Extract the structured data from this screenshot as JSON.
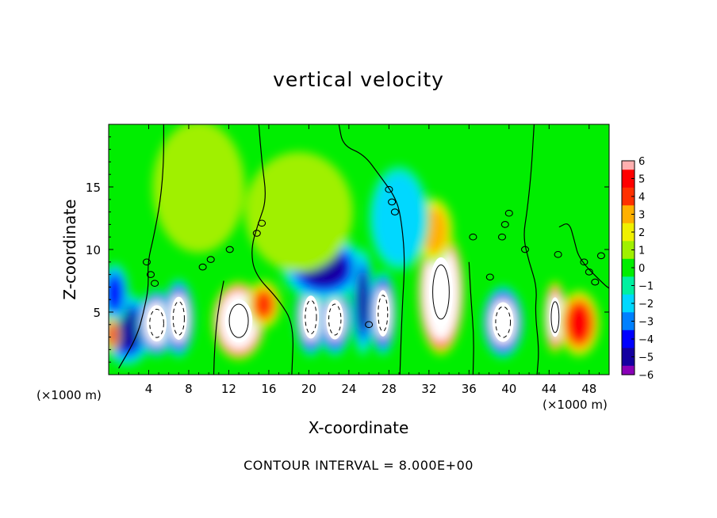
{
  "chart_data": {
    "type": "heatmap",
    "title": "vertical velocity",
    "xlabel": "X-coordinate",
    "ylabel": "Z-coordinate",
    "x_unit_label": "(×1000 m)",
    "footer": "CONTOUR INTERVAL = 8.000E+00",
    "xlim": [
      0,
      50
    ],
    "ylim": [
      0,
      20
    ],
    "x_ticks": [
      4,
      8,
      12,
      16,
      20,
      24,
      28,
      32,
      36,
      40,
      44,
      48
    ],
    "y_ticks": [
      5,
      10,
      15
    ],
    "colorbar": {
      "min": -6,
      "max": 6,
      "tick_labels": [
        "6",
        "5",
        "4",
        "3",
        "2",
        "1",
        "0",
        "−1",
        "−2",
        "−3",
        "−4",
        "−5",
        "−6"
      ],
      "colors": [
        {
          "value": -6,
          "color": "#8a00b8"
        },
        {
          "value": -5,
          "color": "#1400a0"
        },
        {
          "value": -4,
          "color": "#0000ff"
        },
        {
          "value": -3,
          "color": "#0080ff"
        },
        {
          "value": -2,
          "color": "#00d8ff"
        },
        {
          "value": -1,
          "color": "#00f0a0"
        },
        {
          "value": 0,
          "color": "#00ee00"
        },
        {
          "value": 1,
          "color": "#a0f000"
        },
        {
          "value": 2,
          "color": "#f0f000"
        },
        {
          "value": 3,
          "color": "#ffb000"
        },
        {
          "value": 4,
          "color": "#ff3000"
        },
        {
          "value": 5,
          "color": "#ff0000"
        },
        {
          "value": 6,
          "color": "#ffb0b0"
        }
      ]
    },
    "cells": [
      {
        "x": 1.8,
        "z": 3.6,
        "sx": 2.2,
        "sz": 2.4,
        "v": -5.2
      },
      {
        "x": 4.8,
        "z": 4.1,
        "sx": 1.6,
        "sz": 2.2,
        "v": -9
      },
      {
        "x": 7.0,
        "z": 4.5,
        "sx": 1.3,
        "sz": 2.6,
        "v": -8
      },
      {
        "x": 13.0,
        "z": 4.3,
        "sx": 2.2,
        "sz": 2.6,
        "v": 12
      },
      {
        "x": 15.5,
        "z": 5.6,
        "sx": 1.4,
        "sz": 1.6,
        "v": 4
      },
      {
        "x": 20.2,
        "z": 4.6,
        "sx": 1.3,
        "sz": 2.6,
        "v": -8
      },
      {
        "x": 22.6,
        "z": 4.4,
        "sx": 1.4,
        "sz": 2.4,
        "v": -7
      },
      {
        "x": 21.5,
        "z": 8.5,
        "sx": 3.5,
        "sz": 2.2,
        "v": -5
      },
      {
        "x": 25.4,
        "z": 5.8,
        "sx": 0.9,
        "sz": 3.6,
        "v": -4.5
      },
      {
        "x": 27.4,
        "z": 4.9,
        "sx": 1.1,
        "sz": 2.8,
        "v": -7.5
      },
      {
        "x": 33.2,
        "z": 6.6,
        "sx": 1.9,
        "sz": 4.2,
        "v": 14
      },
      {
        "x": 32.5,
        "z": 11.5,
        "sx": 1.6,
        "sz": 2.2,
        "v": 3.2
      },
      {
        "x": 39.4,
        "z": 4.2,
        "sx": 1.7,
        "sz": 2.4,
        "v": -8
      },
      {
        "x": 44.6,
        "z": 4.6,
        "sx": 0.9,
        "sz": 2.4,
        "v": 9
      },
      {
        "x": 47.0,
        "z": 4.1,
        "sx": 1.7,
        "sz": 2.2,
        "v": 5.2
      },
      {
        "x": 0.6,
        "z": 6.5,
        "sx": 1.2,
        "sz": 2.0,
        "v": -4
      },
      {
        "x": 0.3,
        "z": 3.2,
        "sx": 0.6,
        "sz": 1.2,
        "v": 5
      },
      {
        "x": 19.0,
        "z": 13.0,
        "sx": 4.5,
        "sz": 4.0,
        "v": 1.4
      },
      {
        "x": 9.0,
        "z": 15.0,
        "sx": 3.5,
        "sz": 4.0,
        "v": 0.8
      },
      {
        "x": 29.0,
        "z": 12.5,
        "sx": 2.5,
        "sz": 3.5,
        "v": -1.5
      }
    ]
  }
}
